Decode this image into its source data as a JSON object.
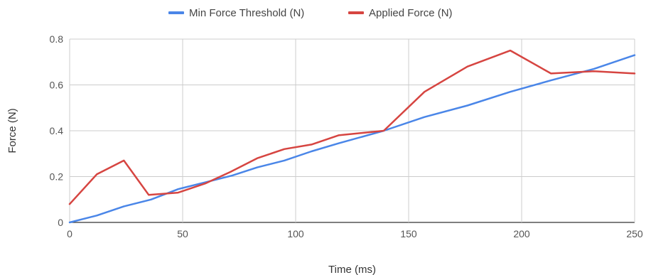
{
  "chart_data": {
    "type": "line",
    "xlabel": "Time (ms)",
    "ylabel": "Force (N)",
    "xlim": [
      0,
      250
    ],
    "ylim": [
      0,
      0.8
    ],
    "x_ticks": [
      0,
      50,
      100,
      150,
      200,
      250
    ],
    "y_ticks": [
      0,
      0.2,
      0.4,
      0.6,
      0.8
    ],
    "x_tick_labels": [
      "0",
      "50",
      "100",
      "150",
      "200",
      "250"
    ],
    "y_tick_labels": [
      "0",
      "0.2",
      "0.4",
      "0.6",
      "0.8"
    ],
    "grid": true,
    "legend_position": "top-center",
    "series": [
      {
        "name": "Min Force Threshold (N)",
        "color": "#4a86e8",
        "x": [
          0,
          12,
          24,
          36,
          48,
          60,
          72,
          83,
          95,
          107,
          119,
          139,
          157,
          176,
          195,
          213,
          232,
          250
        ],
        "y": [
          0.0,
          0.03,
          0.07,
          0.1,
          0.145,
          0.175,
          0.205,
          0.24,
          0.27,
          0.31,
          0.345,
          0.4,
          0.46,
          0.51,
          0.57,
          0.62,
          0.67,
          0.73
        ]
      },
      {
        "name": "Applied Force (N)",
        "color": "#d64541",
        "x": [
          0,
          12,
          24,
          35,
          48,
          60,
          71,
          83,
          95,
          107,
          119,
          139,
          157,
          176,
          195,
          213,
          232,
          250
        ],
        "y": [
          0.08,
          0.21,
          0.27,
          0.12,
          0.13,
          0.17,
          0.22,
          0.28,
          0.32,
          0.34,
          0.38,
          0.4,
          0.57,
          0.68,
          0.75,
          0.65,
          0.66,
          0.65
        ]
      }
    ]
  }
}
